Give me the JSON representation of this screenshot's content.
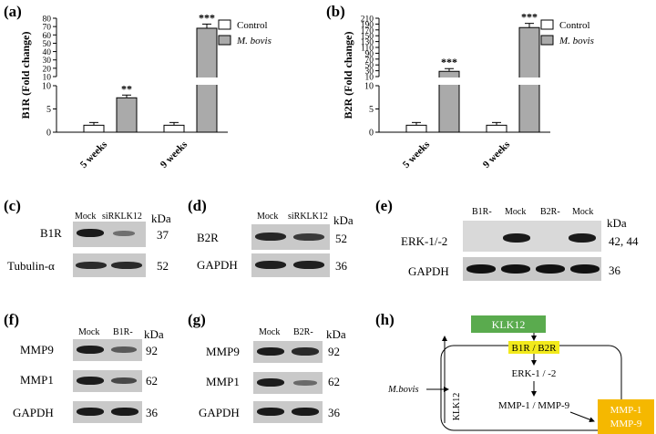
{
  "panels": {
    "a": "(a)",
    "b": "(b)",
    "c": "(c)",
    "d": "(d)",
    "e": "(e)",
    "f": "(f)",
    "g": "(g)",
    "h": "(h)"
  },
  "chart_data": [
    {
      "type": "bar",
      "ylabel": "B1R (Fold change)",
      "categories": [
        "5 weeks",
        "9 weeks"
      ],
      "series": [
        {
          "name": "Control",
          "values": [
            1.5,
            1.5
          ],
          "color": "#ffffff"
        },
        {
          "name": "M. bovis",
          "values": [
            7.4,
            68
          ],
          "color": "#aaaaaa"
        }
      ],
      "significance": [
        "**",
        "***"
      ],
      "y_ticks_lower": [
        "0",
        "5",
        "10"
      ],
      "y_ticks_upper": [
        "10",
        "20",
        "30",
        "40",
        "50",
        "60",
        "70",
        "80"
      ],
      "y_break": [
        10,
        10
      ],
      "legend_position": "top-right"
    },
    {
      "type": "bar",
      "ylabel": "B2R (Fold change)",
      "categories": [
        "5 weeks",
        "9 weeks"
      ],
      "series": [
        {
          "name": "Control",
          "values": [
            1.5,
            1.5
          ],
          "color": "#ffffff"
        },
        {
          "name": "M. bovis",
          "values": [
            28,
            178
          ],
          "color": "#aaaaaa"
        }
      ],
      "significance": [
        "***",
        "***"
      ],
      "y_ticks_lower": [
        "0",
        "5",
        "10"
      ],
      "y_ticks_upper": [
        "10",
        "30",
        "50",
        "70",
        "90",
        "110",
        "130",
        "150",
        "170",
        "190",
        "210"
      ],
      "y_break": [
        10,
        10
      ],
      "legend_position": "top-right"
    }
  ],
  "blots": {
    "c": {
      "lanes": [
        "Mock",
        "siRKLK12"
      ],
      "rows": [
        {
          "label": "B1R",
          "kda": "37"
        },
        {
          "label": "Tubulin-α",
          "kda": "52"
        }
      ],
      "kda_head": "kDa"
    },
    "d": {
      "lanes": [
        "Mock",
        "siRKLK12"
      ],
      "rows": [
        {
          "label": "B2R",
          "kda": "52"
        },
        {
          "label": "GAPDH",
          "kda": "36"
        }
      ],
      "kda_head": "kDa"
    },
    "e": {
      "lanes": [
        "B1R-",
        "Mock",
        "B2R-",
        "Mock"
      ],
      "rows": [
        {
          "label": "ERK-1/-2",
          "kda": "42, 44"
        },
        {
          "label": "GAPDH",
          "kda": "36"
        }
      ],
      "kda_head": "kDa"
    },
    "f": {
      "lanes": [
        "Mock",
        "B1R-"
      ],
      "rows": [
        {
          "label": "MMP9",
          "kda": "92"
        },
        {
          "label": "MMP1",
          "kda": "62"
        },
        {
          "label": "GAPDH",
          "kda": "36"
        }
      ],
      "kda_head": "kDa"
    },
    "g": {
      "lanes": [
        "Mock",
        "B2R-"
      ],
      "rows": [
        {
          "label": "MMP9",
          "kda": "92"
        },
        {
          "label": "MMP1",
          "kda": "62"
        },
        {
          "label": "GAPDH",
          "kda": "36"
        }
      ],
      "kda_head": "kDa"
    }
  },
  "diagram": {
    "klk12": "KLK12",
    "receptor": "B1R / B2R",
    "erk": "ERK-1 / -2",
    "mmp": "MMP-1 / MMP-9",
    "mbovis": "M.bovis",
    "klk12_vertical": "KLK12",
    "mmp1": "MMP-1",
    "mmp9": "MMP-9",
    "colors": {
      "klk12_box": "#5aab4e",
      "receptor_bg": "#f2ea1c",
      "mmp_box": "#f5b800"
    }
  }
}
